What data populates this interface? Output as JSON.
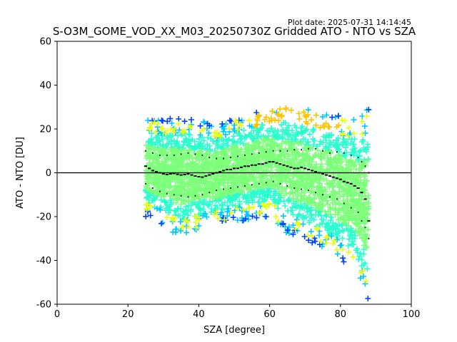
{
  "chart_data": {
    "type": "scatter",
    "title": "S-O3M_GOME_VOD_XX_M03_20250730Z Gridded ATO - NTO vs SZA",
    "plot_date": "Plot date: 2025-07-31 14:14:45",
    "xlabel": "SZA [degree]",
    "ylabel": "ATO - NTO [DU]",
    "xlim": [
      0,
      100
    ],
    "ylim": [
      -60,
      60
    ],
    "xticks": [
      0,
      20,
      40,
      60,
      80,
      100
    ],
    "yticks": [
      -60,
      -40,
      -20,
      0,
      20,
      40,
      60
    ],
    "reference_line_y": 0,
    "grid": false,
    "legend": "none",
    "marker": "+",
    "colors": {
      "dense": "#7cff79",
      "mid": "#29ffce",
      "cyan": "#00c8ff",
      "blue": "#0040ff",
      "yellow": "#e7ff0f",
      "orange": "#ffc400",
      "stats": "#000000",
      "zero_line": "#000000"
    },
    "scatter_envelope": {
      "sza": [
        25,
        30,
        35,
        40,
        45,
        50,
        55,
        60,
        65,
        70,
        75,
        80,
        84,
        86,
        88
      ],
      "upper": [
        25,
        24,
        26,
        24,
        22,
        25,
        27,
        30,
        31,
        29,
        28,
        26,
        25,
        28,
        30
      ],
      "lower": [
        -20,
        -24,
        -30,
        -26,
        -24,
        -22,
        -22,
        -20,
        -28,
        -30,
        -35,
        -40,
        -45,
        -55,
        -60
      ]
    },
    "series": [
      {
        "name": "mean",
        "x": [
          25,
          26,
          27,
          28,
          29,
          30,
          31,
          32,
          33,
          34,
          35,
          36,
          37,
          38,
          39,
          40,
          41,
          42,
          43,
          44,
          45,
          46,
          47,
          48,
          49,
          50,
          51,
          52,
          53,
          54,
          55,
          56,
          57,
          58,
          59,
          60,
          61,
          62,
          63,
          64,
          65,
          66,
          67,
          68,
          69,
          70,
          71,
          72,
          73,
          74,
          75,
          76,
          77,
          78,
          79,
          80,
          81,
          82,
          83,
          84,
          85,
          86,
          87,
          88
        ],
        "y": [
          3,
          2,
          1,
          0.5,
          0,
          -0.5,
          -0.8,
          -0.5,
          -0.3,
          -0.7,
          -1,
          -0.8,
          -0.5,
          -1,
          -1.5,
          -1.8,
          -2,
          -1.5,
          -1,
          -0.5,
          0,
          0.5,
          1,
          1.5,
          1.5,
          2,
          2,
          2.5,
          3,
          3,
          3.5,
          3.5,
          4,
          4,
          4.5,
          5,
          5,
          4.5,
          4,
          3.5,
          3,
          2.5,
          2,
          2,
          2.5,
          2,
          1.5,
          1,
          0.5,
          0,
          -0.5,
          -1,
          -1.5,
          -2,
          -2.5,
          -3,
          -4,
          -4.5,
          -5,
          -6,
          -7,
          -9,
          -12,
          -22
        ]
      },
      {
        "name": "mean_plus_std",
        "x": [
          25,
          27,
          29,
          31,
          33,
          35,
          37,
          39,
          41,
          43,
          45,
          47,
          49,
          51,
          53,
          55,
          57,
          59,
          61,
          63,
          65,
          67,
          69,
          71,
          73,
          75,
          77,
          79,
          81,
          83,
          85,
          86,
          87,
          88
        ],
        "y": [
          10,
          9,
          8,
          8,
          8,
          8.5,
          9,
          8.5,
          8,
          7,
          6.5,
          6.5,
          7,
          7.5,
          8,
          8.5,
          9,
          9.5,
          10,
          10,
          10,
          10.5,
          10.5,
          11,
          11,
          10,
          9,
          9.5,
          9,
          8,
          7,
          5,
          3,
          0
        ]
      },
      {
        "name": "mean_minus_std",
        "x": [
          25,
          27,
          29,
          31,
          33,
          35,
          37,
          39,
          41,
          43,
          45,
          47,
          49,
          51,
          53,
          55,
          57,
          59,
          61,
          63,
          65,
          67,
          69,
          71,
          73,
          75,
          77,
          79,
          81,
          83,
          85,
          86,
          87,
          88
        ],
        "y": [
          -5,
          -7,
          -8.5,
          -9.5,
          -10,
          -10.5,
          -11,
          -10.5,
          -10,
          -9,
          -8,
          -7.5,
          -7,
          -6.5,
          -6,
          -5.5,
          -5,
          -4.5,
          -4,
          -5,
          -6,
          -7,
          -7.5,
          -8,
          -9,
          -10,
          -11,
          -12,
          -14,
          -16,
          -18,
          -22,
          -25,
          -30
        ]
      }
    ]
  }
}
